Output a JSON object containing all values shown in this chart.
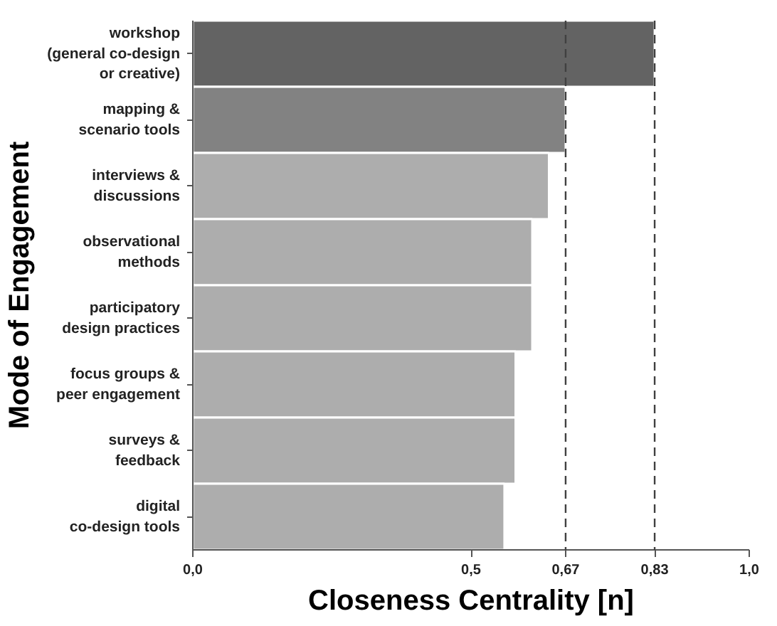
{
  "chart_data": {
    "type": "bar",
    "orientation": "horizontal",
    "xlabel": "Closeness Centrality [n]",
    "ylabel": "Mode of Engagement",
    "categories": [
      "workshop\n(general co-design\nor creative)",
      "mapping &\nscenario tools",
      "interviews &\ndiscussions",
      "observational\nmethods",
      "participatory\ndesign practices",
      "focus groups &\npeer engagement",
      "surveys &\nfeedback",
      "digital\nco-design tools"
    ],
    "values": [
      0.83,
      0.67,
      0.64,
      0.61,
      0.61,
      0.58,
      0.58,
      0.56
    ],
    "colors": [
      "#636363",
      "#828282",
      "#adadad",
      "#adadad",
      "#adadad",
      "#adadad",
      "#adadad",
      "#adadad"
    ],
    "xlim": [
      0,
      1
    ],
    "xticks": [
      {
        "value": 0,
        "label": "0,0"
      },
      {
        "value": 0.5,
        "label": "0,5"
      },
      {
        "value": 0.67,
        "label": "0,67"
      },
      {
        "value": 0.83,
        "label": "0,83"
      },
      {
        "value": 1,
        "label": "1,0"
      }
    ],
    "ref_lines": [
      {
        "axis": "x",
        "value": 0.67,
        "line_style": "dashed",
        "color": "#404040"
      },
      {
        "axis": "x",
        "value": 0.83,
        "line_style": "dashed",
        "color": "#404040"
      }
    ],
    "grid": false
  }
}
